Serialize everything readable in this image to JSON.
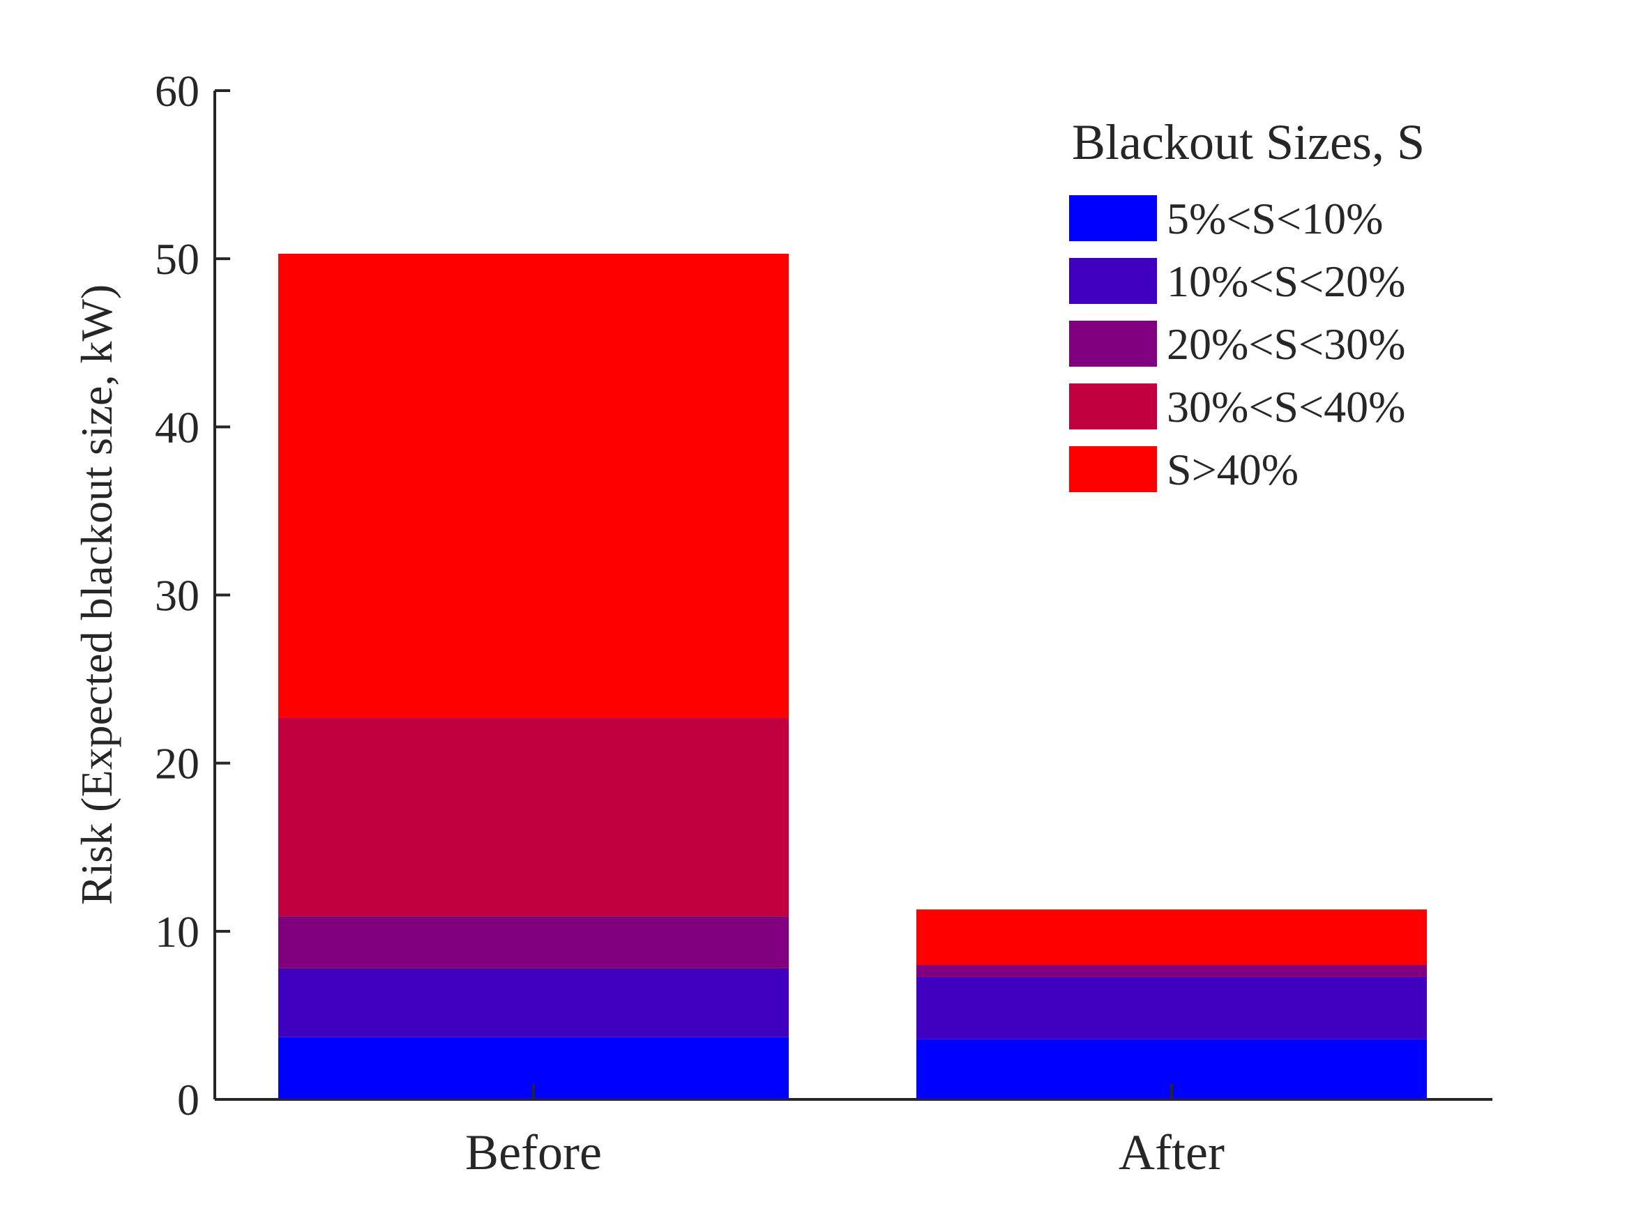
{
  "chart_data": {
    "type": "bar",
    "stacked": true,
    "categories": [
      "Before",
      "After"
    ],
    "ylabel": "Risk (Expected blackout size, kW)",
    "xlabel": "",
    "ylim": [
      0,
      60
    ],
    "yticks": [
      0,
      10,
      20,
      30,
      40,
      50,
      60
    ],
    "grid": false,
    "legend": {
      "title": "Blackout Sizes, S",
      "placement": "top-right"
    },
    "series": [
      {
        "name": "5%<S<10%",
        "color": "#0000ff",
        "values": [
          3.7,
          3.6
        ]
      },
      {
        "name": "10%<S<20%",
        "color": "#3f00c0",
        "values": [
          4.1,
          3.7
        ]
      },
      {
        "name": "20%<S<30%",
        "color": "#800080",
        "values": [
          3.1,
          0.7
        ]
      },
      {
        "name": "30%<S<40%",
        "color": "#c0003f",
        "values": [
          11.8,
          0.0
        ]
      },
      {
        "name": "S>40%",
        "color": "#ff0000",
        "values": [
          27.6,
          3.3
        ]
      }
    ]
  }
}
